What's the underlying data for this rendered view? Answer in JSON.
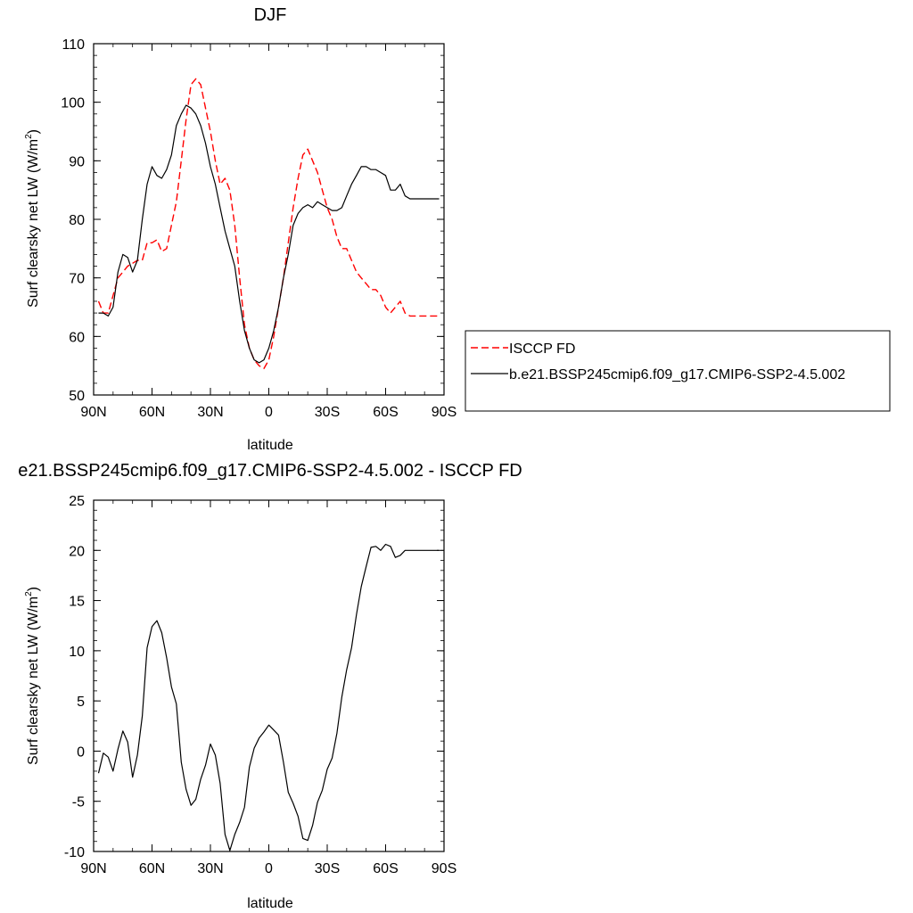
{
  "chart_data": [
    {
      "type": "line",
      "title": "DJF",
      "xlabel": "latitude",
      "ylabel_main": "Surf clearsky net LW (W/m",
      "ylabel_sup": "2",
      "ylabel_end": ")",
      "xlim": [
        90,
        -90
      ],
      "ylim": [
        50,
        110
      ],
      "x_ticks": [
        {
          "value": 90,
          "label": "90N"
        },
        {
          "value": 60,
          "label": "60N"
        },
        {
          "value": 30,
          "label": "30N"
        },
        {
          "value": 0,
          "label": "0"
        },
        {
          "value": -30,
          "label": "30S"
        },
        {
          "value": -60,
          "label": "60S"
        },
        {
          "value": -90,
          "label": "90S"
        }
      ],
      "y_ticks": [
        50,
        60,
        70,
        80,
        90,
        100,
        110
      ],
      "legend_position": "right",
      "series": [
        {
          "name": "ISCCP FD",
          "color": "#ff0000",
          "dash": "dashed",
          "x": [
            87.5,
            85,
            82.5,
            80,
            77.5,
            75,
            72.5,
            70,
            67.5,
            65,
            62.5,
            60,
            57.5,
            55,
            52.5,
            50,
            47.5,
            45,
            42.5,
            40,
            37.5,
            35,
            32.5,
            30,
            27.5,
            25,
            22.5,
            20,
            17.5,
            15,
            12.5,
            10,
            7.5,
            5,
            2.5,
            0,
            -2.5,
            -5,
            -7.5,
            -10,
            -12.5,
            -15,
            -17.5,
            -20,
            -22.5,
            -25,
            -27.5,
            -30,
            -32.5,
            -35,
            -37.5,
            -40,
            -42.5,
            -45,
            -47.5,
            -50,
            -52.5,
            -55,
            -57.5,
            -60,
            -62.5,
            -65,
            -67.5,
            -70,
            -72.5,
            -75,
            -77.5,
            -80,
            -82.5,
            -85,
            -87.5
          ],
          "y": [
            66,
            64,
            64,
            67,
            70,
            71,
            72,
            72.5,
            73,
            73,
            76,
            76,
            76.5,
            74.5,
            75,
            79,
            83,
            90,
            97,
            103,
            104,
            103,
            99,
            95,
            90,
            86,
            87,
            85,
            79,
            70,
            62,
            58,
            56,
            55,
            54.5,
            56,
            60,
            65,
            70,
            76,
            82,
            87,
            91,
            92,
            90,
            88,
            85,
            82,
            80,
            77,
            75,
            75,
            73,
            71,
            70,
            69,
            68,
            68,
            67,
            65,
            64,
            65,
            66,
            64,
            63.5,
            63.5,
            63.5,
            63.5,
            63.5,
            63.5,
            63.5
          ]
        },
        {
          "name": "b.e21.BSSP245cmip6.f09_g17.CMIP6-SSP2-4.5.002",
          "color": "#000000",
          "dash": "solid",
          "x": [
            87.5,
            85,
            82.5,
            80,
            77.5,
            75,
            72.5,
            70,
            67.5,
            65,
            62.5,
            60,
            57.5,
            55,
            52.5,
            50,
            47.5,
            45,
            42.5,
            40,
            37.5,
            35,
            32.5,
            30,
            27.5,
            25,
            22.5,
            20,
            17.5,
            15,
            12.5,
            10,
            7.5,
            5,
            2.5,
            0,
            -2.5,
            -5,
            -7.5,
            -10,
            -12.5,
            -15,
            -17.5,
            -20,
            -22.5,
            -25,
            -27.5,
            -30,
            -32.5,
            -35,
            -37.5,
            -40,
            -42.5,
            -45,
            -47.5,
            -50,
            -52.5,
            -55,
            -57.5,
            -60,
            -62.5,
            -65,
            -67.5,
            -70,
            -72.5,
            -75,
            -77.5,
            -80,
            -82.5,
            -85,
            -87.5
          ],
          "y": [
            64,
            64,
            63.5,
            65,
            71,
            74,
            73.5,
            71,
            73,
            80,
            86,
            89,
            87.5,
            87,
            88.5,
            91,
            96,
            98,
            99.5,
            99,
            98,
            96,
            93,
            89,
            86,
            82,
            78,
            75,
            72,
            66,
            61,
            58,
            56,
            55.5,
            56,
            58,
            61,
            65,
            70,
            74,
            79,
            81,
            82,
            82.5,
            82,
            83,
            82.5,
            82,
            81.5,
            81.5,
            82,
            84,
            86,
            87.5,
            89,
            89,
            88.5,
            88.5,
            88,
            87.5,
            85,
            85,
            86,
            84,
            83.5,
            83.5,
            83.5,
            83.5,
            83.5,
            83.5,
            83.5
          ]
        }
      ]
    },
    {
      "type": "line",
      "title": "e21.BSSP245cmip6.f09_g17.CMIP6-SSP2-4.5.002 - ISCCP FD",
      "xlabel": "latitude",
      "ylabel_main": "Surf clearsky net LW (W/m",
      "ylabel_sup": "2",
      "ylabel_end": ")",
      "xlim": [
        90,
        -90
      ],
      "ylim": [
        -10,
        25
      ],
      "x_ticks": [
        {
          "value": 90,
          "label": "90N"
        },
        {
          "value": 60,
          "label": "60N"
        },
        {
          "value": 30,
          "label": "30N"
        },
        {
          "value": 0,
          "label": "0"
        },
        {
          "value": -30,
          "label": "30S"
        },
        {
          "value": -60,
          "label": "60S"
        },
        {
          "value": -90,
          "label": "90S"
        }
      ],
      "y_ticks": [
        -10,
        -5,
        0,
        5,
        10,
        15,
        20,
        25
      ],
      "series": [
        {
          "color": "#000000",
          "dash": "solid",
          "x": [
            87.5,
            85,
            82.5,
            80,
            77.5,
            75,
            72.5,
            70,
            67.5,
            65,
            62.5,
            60,
            57.5,
            55,
            52.5,
            50,
            47.5,
            45,
            42.5,
            40,
            37.5,
            35,
            32.5,
            30,
            27.5,
            25,
            22.5,
            20,
            17.5,
            15,
            12.5,
            10,
            7.5,
            5,
            2.5,
            0,
            -2.5,
            -5,
            -7.5,
            -10,
            -12.5,
            -15,
            -17.5,
            -20,
            -22.5,
            -25,
            -27.5,
            -30,
            -32.5,
            -35,
            -37.5,
            -40,
            -42.5,
            -45,
            -47.5,
            -50,
            -52.5,
            -55,
            -57.5,
            -60,
            -62.5,
            -65,
            -67.5,
            -70,
            -72.5,
            -75,
            -77.5,
            -80,
            -82.5,
            -85,
            -87.5
          ],
          "y": [
            -2.2,
            -0.2,
            -0.6,
            -2,
            0.2,
            2,
            0.9,
            -2.6,
            -0.4,
            3.5,
            10.3,
            12.4,
            13,
            11.8,
            9.3,
            6.4,
            4.7,
            -1.1,
            -3.8,
            -5.4,
            -4.8,
            -2.8,
            -1.4,
            0.7,
            -0.4,
            -3.2,
            -8.3,
            -9.9,
            -8.3,
            -7.1,
            -5.6,
            -1.6,
            0.3,
            1.3,
            1.9,
            2.6,
            2.1,
            1.6,
            -1.1,
            -4.1,
            -5.2,
            -6.5,
            -8.7,
            -8.9,
            -7.4,
            -5.1,
            -3.9,
            -1.8,
            -0.7,
            1.8,
            5.4,
            8.1,
            10.3,
            13.6,
            16.4,
            18.4,
            20.3,
            20.4,
            20,
            20.6,
            20.4,
            19.3,
            19.5,
            20,
            20,
            20,
            20,
            20,
            20,
            20,
            20
          ]
        }
      ]
    }
  ]
}
